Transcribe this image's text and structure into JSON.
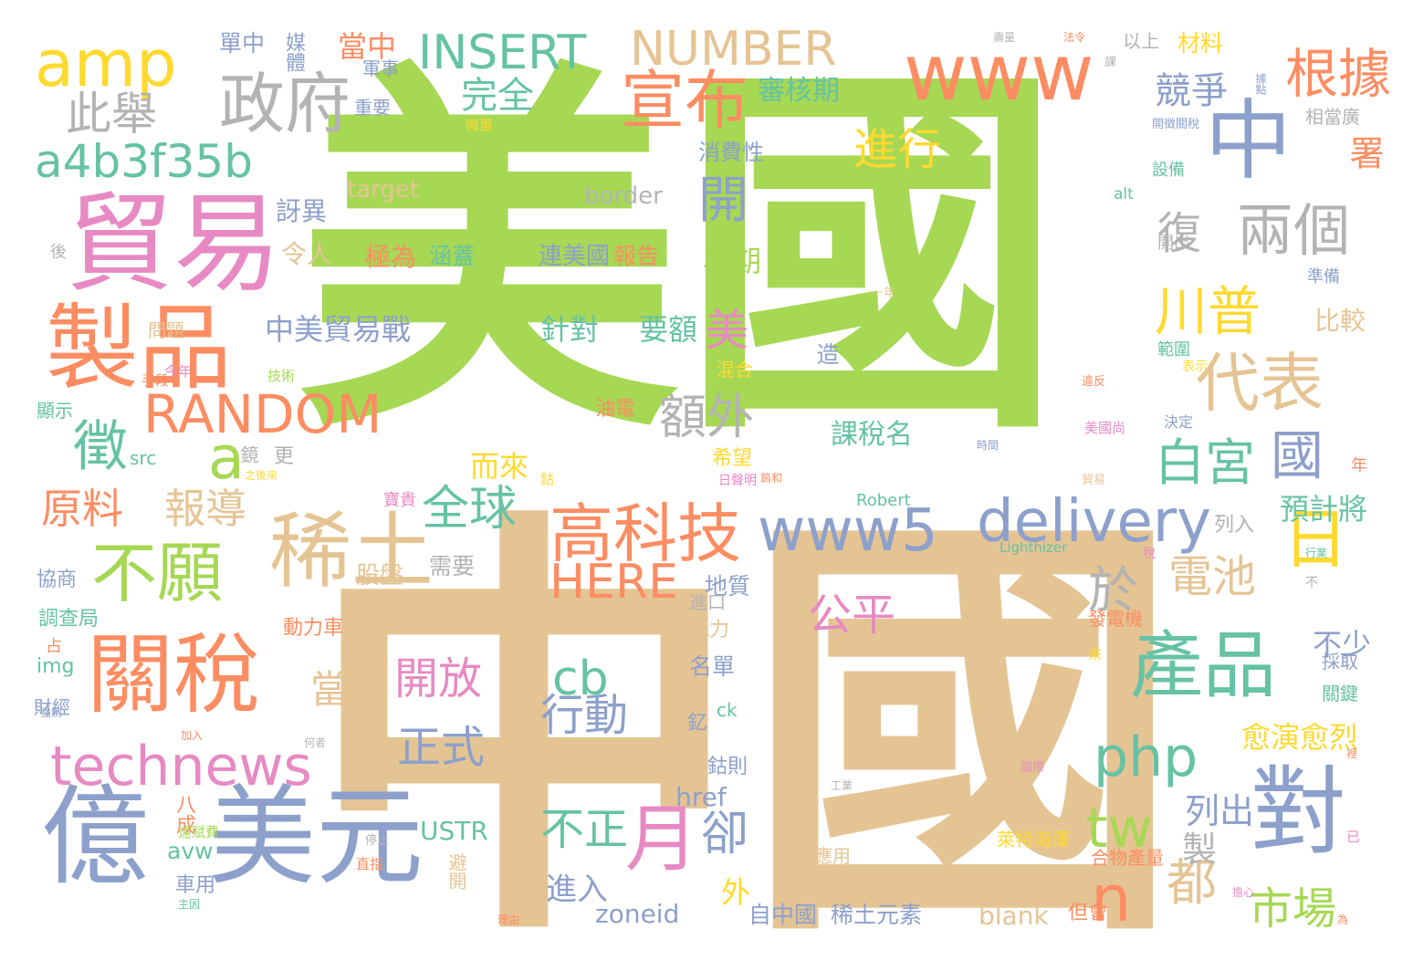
{
  "palette": {
    "green": "#a6d854",
    "tan": "#e5c494",
    "orange": "#fc8d62",
    "blue": "#8da0cb",
    "pink": "#e78ac3",
    "yellow": "#ffd92f",
    "teal": "#66c2a5",
    "gray": "#b3b3b3"
  },
  "words": [
    {
      "text": "美國",
      "color": "green"
    },
    {
      "text": "中國",
      "color": "tan"
    },
    {
      "text": "貿易",
      "color": "pink"
    },
    {
      "text": "億",
      "color": "blue"
    },
    {
      "text": "美元",
      "color": "blue"
    },
    {
      "text": "製品",
      "color": "orange"
    },
    {
      "text": "關稅",
      "color": "orange"
    },
    {
      "text": "稀土",
      "color": "tan"
    },
    {
      "text": "amp",
      "color": "yellow"
    },
    {
      "text": "政府",
      "color": "gray"
    },
    {
      "text": "www",
      "color": "orange"
    },
    {
      "text": "中",
      "color": "blue"
    },
    {
      "text": "宣布",
      "color": "orange"
    },
    {
      "text": "INSERT",
      "color": "teal"
    },
    {
      "text": "NUMBER",
      "color": "tan"
    },
    {
      "text": "a4b3f35b",
      "color": "teal"
    },
    {
      "text": "此舉",
      "color": "gray"
    },
    {
      "text": "完全",
      "color": "teal"
    },
    {
      "text": "開",
      "color": "blue"
    },
    {
      "text": "進行",
      "color": "yellow"
    },
    {
      "text": "兩個",
      "color": "gray"
    },
    {
      "text": "根據",
      "color": "orange"
    },
    {
      "text": "競爭",
      "color": "blue"
    },
    {
      "text": "署",
      "color": "orange"
    },
    {
      "text": "川普",
      "color": "yellow"
    },
    {
      "text": "代表",
      "color": "tan"
    },
    {
      "text": "徵",
      "color": "teal"
    },
    {
      "text": "a",
      "color": "green"
    },
    {
      "text": "RANDOM",
      "color": "orange"
    },
    {
      "text": "額外",
      "color": "gray"
    },
    {
      "text": "不願",
      "color": "green"
    },
    {
      "text": "原料",
      "color": "orange"
    },
    {
      "text": "報導",
      "color": "tan"
    },
    {
      "text": "全球",
      "color": "teal"
    },
    {
      "text": "高科技",
      "color": "orange"
    },
    {
      "text": "www5",
      "color": "blue"
    },
    {
      "text": "delivery",
      "color": "blue"
    },
    {
      "text": "白宮",
      "color": "teal"
    },
    {
      "text": "國",
      "color": "blue"
    },
    {
      "text": "日",
      "color": "yellow"
    },
    {
      "text": "technews",
      "color": "pink"
    },
    {
      "text": "產品",
      "color": "teal"
    },
    {
      "text": "php",
      "color": "teal"
    },
    {
      "text": "對",
      "color": "blue"
    },
    {
      "text": "月",
      "color": "pink"
    },
    {
      "text": "cb",
      "color": "teal"
    },
    {
      "text": "開放",
      "color": "pink"
    },
    {
      "text": "行動",
      "color": "blue"
    },
    {
      "text": "正式",
      "color": "blue"
    },
    {
      "text": "tw",
      "color": "green"
    },
    {
      "text": "n",
      "color": "orange"
    },
    {
      "text": "都",
      "color": "tan"
    },
    {
      "text": "市場",
      "color": "green"
    },
    {
      "text": "電池",
      "color": "tan"
    },
    {
      "text": "於",
      "color": "gray"
    },
    {
      "text": "HERE",
      "color": "orange"
    },
    {
      "text": "公平",
      "color": "pink"
    },
    {
      "text": "卻",
      "color": "blue"
    },
    {
      "text": "不正",
      "color": "teal"
    },
    {
      "text": "美",
      "color": "pink"
    },
    {
      "text": "復",
      "color": "gray"
    },
    {
      "text": "中美貿易戰",
      "color": "blue"
    },
    {
      "text": "針對",
      "color": "teal"
    },
    {
      "text": "要額",
      "color": "teal"
    },
    {
      "text": "當",
      "color": "tan"
    },
    {
      "text": "進入",
      "color": "blue"
    },
    {
      "text": "zoneid",
      "color": "blue"
    },
    {
      "text": "愈演愈烈",
      "color": "yellow"
    },
    {
      "text": "列出",
      "color": "blue"
    },
    {
      "text": "不少",
      "color": "blue"
    },
    {
      "text": "預計將",
      "color": "teal"
    },
    {
      "text": "為期",
      "color": "green"
    },
    {
      "text": "比較",
      "color": "tan"
    },
    {
      "text": "令人",
      "color": "tan"
    },
    {
      "text": "訝異",
      "color": "blue"
    },
    {
      "text": "連美國",
      "color": "blue"
    },
    {
      "text": "極為",
      "color": "orange"
    },
    {
      "text": "涵蓋",
      "color": "teal"
    },
    {
      "text": "報告",
      "color": "orange"
    },
    {
      "text": "消費性",
      "color": "blue"
    },
    {
      "text": "target",
      "color": "tan"
    },
    {
      "text": "border",
      "color": "gray"
    },
    {
      "text": "審核期",
      "color": "teal"
    },
    {
      "text": "當中",
      "color": "orange"
    },
    {
      "text": "單中",
      "color": "blue"
    },
    {
      "text": "媒體",
      "color": "blue"
    },
    {
      "text": "軍事",
      "color": "blue"
    },
    {
      "text": "重要",
      "color": "blue"
    },
    {
      "text": "而來",
      "color": "yellow"
    },
    {
      "text": "課稅名",
      "color": "teal"
    },
    {
      "text": "製",
      "color": "gray"
    },
    {
      "text": "外",
      "color": "yellow"
    },
    {
      "text": "blank",
      "color": "tan"
    },
    {
      "text": "自中國",
      "color": "blue"
    },
    {
      "text": "稀土元素",
      "color": "blue"
    },
    {
      "text": "但會",
      "color": "orange"
    },
    {
      "text": "USTR",
      "color": "teal"
    },
    {
      "text": "avw",
      "color": "teal"
    },
    {
      "text": "href",
      "color": "blue"
    },
    {
      "text": "名單",
      "color": "blue"
    },
    {
      "text": "地質",
      "color": "blue"
    },
    {
      "text": "風力",
      "color": "tan"
    },
    {
      "text": "動力車",
      "color": "orange"
    },
    {
      "text": "股盤",
      "color": "tan"
    },
    {
      "text": "需要",
      "color": "gray"
    },
    {
      "text": "協商",
      "color": "blue"
    },
    {
      "text": "調查局",
      "color": "teal"
    },
    {
      "text": "img",
      "color": "teal"
    },
    {
      "text": "財經",
      "color": "blue"
    },
    {
      "text": "src",
      "color": "teal"
    },
    {
      "text": "顯示",
      "color": "teal"
    },
    {
      "text": "問題",
      "color": "tan"
    },
    {
      "text": "材料",
      "color": "yellow"
    },
    {
      "text": "以上",
      "color": "gray"
    },
    {
      "text": "相當廣",
      "color": "gray"
    },
    {
      "text": "設備",
      "color": "teal"
    },
    {
      "text": "開出",
      "color": "gray"
    },
    {
      "text": "準備",
      "color": "blue"
    },
    {
      "text": "範圍",
      "color": "teal"
    },
    {
      "text": "決定",
      "color": "blue"
    },
    {
      "text": "Robert",
      "color": "teal"
    },
    {
      "text": "Lighthizer",
      "color": "teal"
    },
    {
      "text": "列入",
      "color": "gray"
    },
    {
      "text": "發電機",
      "color": "orange"
    },
    {
      "text": "採取",
      "color": "blue"
    },
    {
      "text": "關鍵",
      "color": "teal"
    },
    {
      "text": "納入",
      "color": "tan"
    },
    {
      "text": "合物產量",
      "color": "orange"
    },
    {
      "text": "萊特海澤",
      "color": "yellow"
    },
    {
      "text": "應用",
      "color": "tan"
    },
    {
      "text": "alt",
      "color": "teal"
    },
    {
      "text": "希望",
      "color": "yellow"
    },
    {
      "text": "油電",
      "color": "orange"
    },
    {
      "text": "混合",
      "color": "yellow"
    },
    {
      "text": "ck",
      "color": "teal"
    },
    {
      "text": "釔",
      "color": "blue"
    },
    {
      "text": "鈷則",
      "color": "blue"
    },
    {
      "text": "年",
      "color": "orange"
    },
    {
      "text": "八成",
      "color": "orange"
    },
    {
      "text": "車用",
      "color": "blue"
    },
    {
      "text": "更",
      "color": "gray"
    },
    {
      "text": "鏡",
      "color": "gray"
    },
    {
      "text": "造",
      "color": "blue"
    },
    {
      "text": "進口",
      "color": "gray"
    },
    {
      "text": "避開",
      "color": "tan"
    },
    {
      "text": "後",
      "color": "gray"
    },
    {
      "text": "占",
      "color": "orange"
    },
    {
      "text": "手段",
      "color": "orange"
    },
    {
      "text": "技術",
      "color": "green"
    },
    {
      "text": "一年",
      "color": "tan"
    },
    {
      "text": "時間",
      "color": "blue"
    },
    {
      "text": "擴大",
      "color": "green"
    },
    {
      "text": "今年",
      "color": "pink"
    },
    {
      "text": "微量",
      "color": "yellow"
    },
    {
      "text": "開徵關稅",
      "color": "blue"
    },
    {
      "text": "美國尚",
      "color": "pink"
    },
    {
      "text": "違反",
      "color": "orange"
    },
    {
      "text": "貿易",
      "color": "tan"
    },
    {
      "text": "寶貴",
      "color": "pink"
    },
    {
      "text": "鈷",
      "color": "yellow"
    },
    {
      "text": "日聲明",
      "color": "pink"
    },
    {
      "text": "遭到",
      "color": "green"
    },
    {
      "text": "表示",
      "color": "yellow"
    },
    {
      "text": "擔心",
      "color": "pink"
    },
    {
      "text": "為",
      "color": "orange"
    },
    {
      "text": "稅",
      "color": "pink"
    },
    {
      "text": "來",
      "color": "yellow"
    },
    {
      "text": "已",
      "color": "pink"
    },
    {
      "text": "裡",
      "color": "orange"
    },
    {
      "text": "工業",
      "color": "gray"
    },
    {
      "text": "國際",
      "color": "pink"
    },
    {
      "text": "強制",
      "color": "blue"
    },
    {
      "text": "加入",
      "color": "orange"
    },
    {
      "text": "停止",
      "color": "gray"
    },
    {
      "text": "遠賦費",
      "color": "green"
    },
    {
      "text": "直指",
      "color": "orange"
    },
    {
      "text": "主因",
      "color": "teal"
    },
    {
      "text": "理由",
      "color": "orange"
    },
    {
      "text": "之後來",
      "color": "yellow"
    },
    {
      "text": "行業",
      "color": "teal"
    },
    {
      "text": "不",
      "color": "gray"
    },
    {
      "text": "據點",
      "color": "blue"
    },
    {
      "text": "課",
      "color": "gray"
    },
    {
      "text": "法令",
      "color": "orange"
    },
    {
      "text": "何者",
      "color": "gray"
    },
    {
      "text": "壽量",
      "color": "gray"
    },
    {
      "text": "鎢和",
      "color": "orange"
    },
    {
      "text": "超過",
      "color": "green"
    }
  ]
}
